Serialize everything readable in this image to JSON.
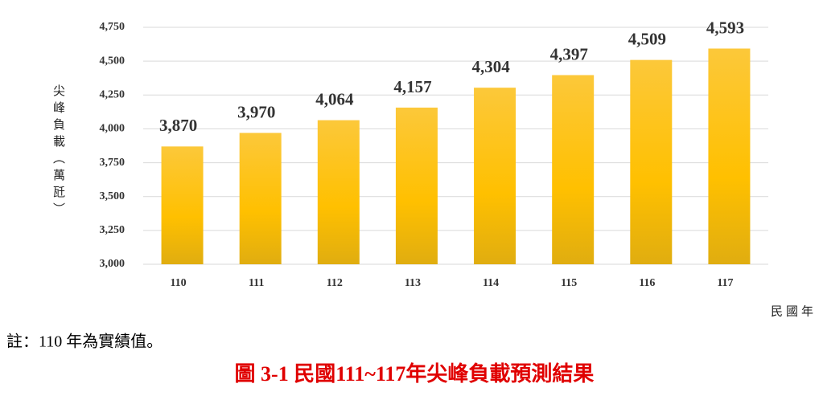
{
  "chart_data": {
    "type": "bar",
    "title": "圖 3-1  民國111~117年尖峰負載預測結果",
    "note": "註：110 年為實績值。",
    "y_label": "尖峰負載（萬瓩）",
    "x_label": "民國年",
    "categories": [
      "110",
      "111",
      "112",
      "113",
      "114",
      "115",
      "116",
      "117"
    ],
    "values": [
      3870,
      3970,
      4064,
      4157,
      4304,
      4397,
      4509,
      4593
    ],
    "value_labels": [
      "3,870",
      "3,970",
      "4,064",
      "4,157",
      "4,304",
      "4,397",
      "4,509",
      "4,593"
    ],
    "color": "#fcc83a",
    "ylim": [
      3000,
      4750
    ],
    "yticks": [
      {
        "value": 3000,
        "label": "3,000"
      },
      {
        "value": 3250,
        "label": "3,250"
      },
      {
        "value": 3500,
        "label": "3,500"
      },
      {
        "value": 3750,
        "label": "3,750"
      },
      {
        "value": 4000,
        "label": "4,000"
      },
      {
        "value": 4250,
        "label": "4,250"
      },
      {
        "value": 4500,
        "label": "4,500"
      },
      {
        "value": 4750,
        "label": "4,750"
      }
    ],
    "grid": true
  }
}
